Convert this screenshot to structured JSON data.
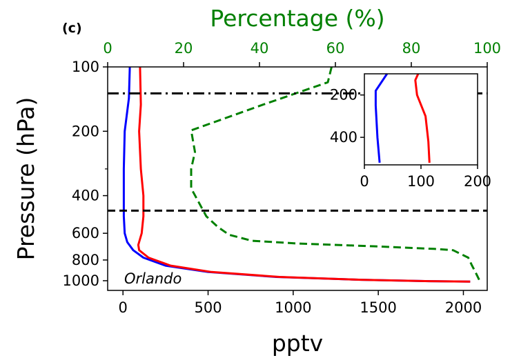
{
  "chart_data": [
    {
      "type": "line",
      "panel_label": "(c)",
      "title": "",
      "xlabel": "pptv",
      "ylabel": "Pressure (hPa)",
      "x2label": "Percentage (%)",
      "xlim": [
        -90,
        2140
      ],
      "ylim_log_reversed": [
        1110,
        100
      ],
      "x_ticks": [
        0,
        500,
        1000,
        1500,
        2000
      ],
      "y_ticks": [
        100,
        200,
        400,
        600,
        800,
        1000
      ],
      "y_ticks_unlabeled": [
        300
      ],
      "x2lim": [
        0,
        100
      ],
      "x2_ticks": [
        0,
        20,
        40,
        60,
        80,
        100
      ],
      "annotation": "Orlando",
      "hlines": [
        {
          "y": 133,
          "style": "dashdot",
          "color": "#000000"
        },
        {
          "y": 470,
          "style": "dashed",
          "color": "#000000"
        }
      ],
      "series": [
        {
          "color": "#0000ff",
          "axis": "bottom",
          "style": "solid",
          "points": [
            [
              40,
              100
            ],
            [
              35,
              140
            ],
            [
              10,
              200
            ],
            [
              5,
              300
            ],
            [
              5,
              400
            ],
            [
              5,
              500
            ],
            [
              10,
              600
            ],
            [
              25,
              660
            ],
            [
              60,
              720
            ],
            [
              120,
              780
            ],
            [
              250,
              850
            ],
            [
              500,
              910
            ],
            [
              900,
              960
            ],
            [
              1400,
              990
            ],
            [
              1800,
              1005
            ],
            [
              2040,
              1010
            ]
          ]
        },
        {
          "color": "#ff0000",
          "axis": "bottom",
          "style": "solid",
          "points": [
            [
              100,
              100
            ],
            [
              105,
              150
            ],
            [
              95,
              200
            ],
            [
              105,
              300
            ],
            [
              120,
              400
            ],
            [
              120,
              500
            ],
            [
              110,
              600
            ],
            [
              90,
              680
            ],
            [
              95,
              720
            ],
            [
              150,
              780
            ],
            [
              280,
              850
            ],
            [
              520,
              910
            ],
            [
              920,
              960
            ],
            [
              1400,
              990
            ],
            [
              1800,
              1005
            ],
            [
              2040,
              1010
            ]
          ]
        },
        {
          "color": "#008000",
          "axis": "top",
          "style": "dashed",
          "points": [
            [
              59,
              100
            ],
            [
              58,
              118
            ],
            [
              41,
              150
            ],
            [
              22,
              198
            ],
            [
              23,
              250
            ],
            [
              22,
              300
            ],
            [
              22,
              370
            ],
            [
              24,
              430
            ],
            [
              26,
              500
            ],
            [
              29,
              560
            ],
            [
              32,
              610
            ],
            [
              38,
              650
            ],
            [
              50,
              670
            ],
            [
              70,
              690
            ],
            [
              86,
              710
            ],
            [
              91,
              720
            ],
            [
              95,
              780
            ],
            [
              96,
              850
            ],
            [
              97,
              920
            ],
            [
              98,
              1000
            ]
          ]
        }
      ]
    },
    {
      "type": "line",
      "inset": true,
      "title": "",
      "xlabel": "",
      "ylabel": "",
      "xlim": [
        0,
        200
      ],
      "ylim_reversed": [
        530,
        100
      ],
      "x_ticks": [
        0,
        100,
        200
      ],
      "y_ticks": [
        200,
        400
      ],
      "series": [
        {
          "color": "#0000ff",
          "points": [
            [
              40,
              100
            ],
            [
              20,
              180
            ],
            [
              20,
              250
            ],
            [
              23,
              400
            ],
            [
              27,
              520
            ]
          ]
        },
        {
          "color": "#ff0000",
          "points": [
            [
              95,
              100
            ],
            [
              90,
              130
            ],
            [
              93,
              200
            ],
            [
              108,
              300
            ],
            [
              113,
              420
            ],
            [
              115,
              520
            ]
          ]
        }
      ]
    }
  ]
}
